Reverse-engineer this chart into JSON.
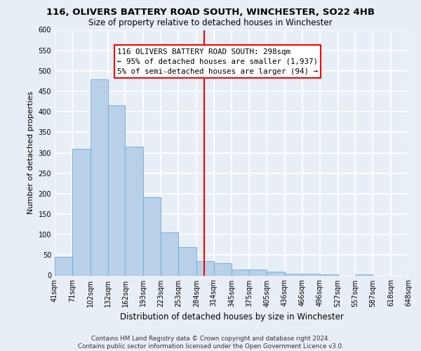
{
  "title": "116, OLIVERS BATTERY ROAD SOUTH, WINCHESTER, SO22 4HB",
  "subtitle": "Size of property relative to detached houses in Winchester",
  "xlabel": "Distribution of detached houses by size in Winchester",
  "ylabel": "Number of detached properties",
  "bin_edges": [
    41,
    71,
    102,
    132,
    162,
    193,
    223,
    253,
    284,
    314,
    345,
    375,
    405,
    436,
    466,
    496,
    527,
    557,
    587,
    618,
    648
  ],
  "bin_labels": [
    "41sqm",
    "71sqm",
    "102sqm",
    "132sqm",
    "162sqm",
    "193sqm",
    "223sqm",
    "253sqm",
    "284sqm",
    "314sqm",
    "345sqm",
    "375sqm",
    "405sqm",
    "436sqm",
    "466sqm",
    "496sqm",
    "527sqm",
    "557sqm",
    "587sqm",
    "618sqm",
    "648sqm"
  ],
  "counts": [
    46,
    310,
    480,
    415,
    315,
    192,
    105,
    69,
    35,
    30,
    15,
    15,
    9,
    5,
    5,
    3,
    0,
    2,
    0,
    0
  ],
  "bar_color": "#b8d0e8",
  "bar_edge_color": "#6aaad4",
  "vline_x": 298,
  "vline_color": "red",
  "annotation_text": "116 OLIVERS BATTERY ROAD SOUTH: 298sqm\n← 95% of detached houses are smaller (1,937)\n5% of semi-detached houses are larger (94) →",
  "annotation_box_color": "white",
  "annotation_box_edge_color": "red",
  "ylim": [
    0,
    600
  ],
  "yticks": [
    0,
    50,
    100,
    150,
    200,
    250,
    300,
    350,
    400,
    450,
    500,
    550,
    600
  ],
  "footer_line1": "Contains HM Land Registry data © Crown copyright and database right 2024.",
  "footer_line2": "Contains public sector information licensed under the Open Government Licence v3.0.",
  "bg_color": "#e8eef5",
  "plot_bg_color": "#e8eef5",
  "grid_color": "white",
  "title_fontsize": 9.5,
  "subtitle_fontsize": 8.5,
  "ylabel_fontsize": 8.0,
  "xlabel_fontsize": 8.5,
  "tick_fontsize": 7.0,
  "annot_fontsize": 7.8,
  "footer_fontsize": 6.3
}
